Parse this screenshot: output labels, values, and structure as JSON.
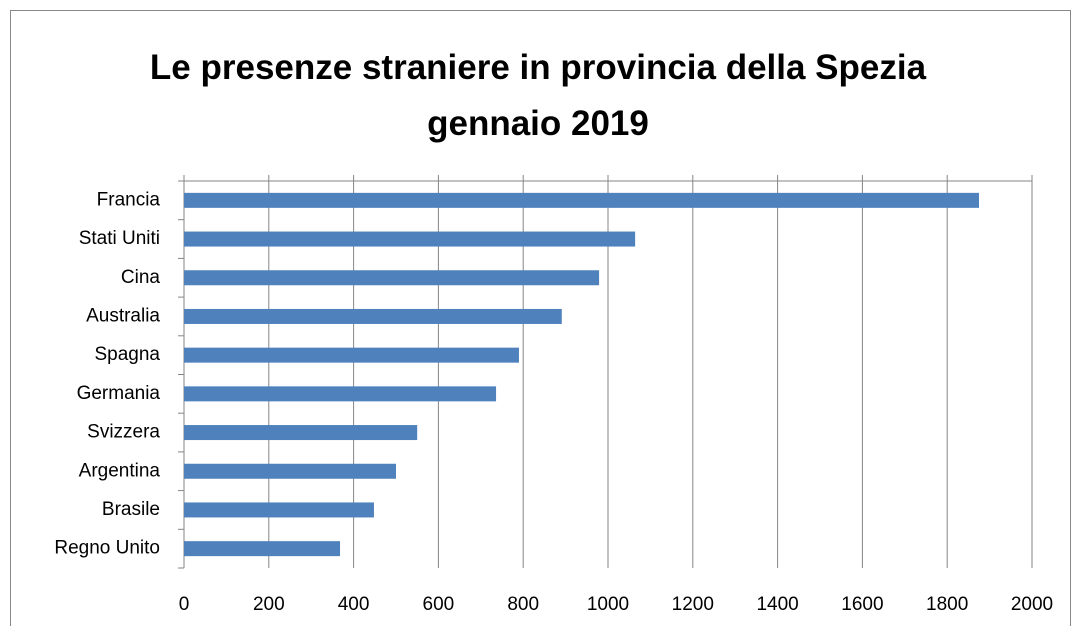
{
  "chart_data": {
    "type": "hbar",
    "title": "Le presenze straniere in provincia della Spezia gennaio 2019",
    "categories": [
      "Francia",
      "Stati Uniti",
      "Cina",
      "Australia",
      "Spagna",
      "Germania",
      "Svizzera",
      "Argentina",
      "Brasile",
      "Regno Unito"
    ],
    "values": [
      1875,
      1064,
      979,
      891,
      790,
      736,
      550,
      500,
      448,
      368
    ],
    "color": "#4f81bd",
    "xlim": [
      0,
      2000
    ],
    "xticks": [
      0,
      200,
      400,
      600,
      800,
      1000,
      1200,
      1400,
      1600,
      1800,
      2000
    ],
    "grid": true
  }
}
